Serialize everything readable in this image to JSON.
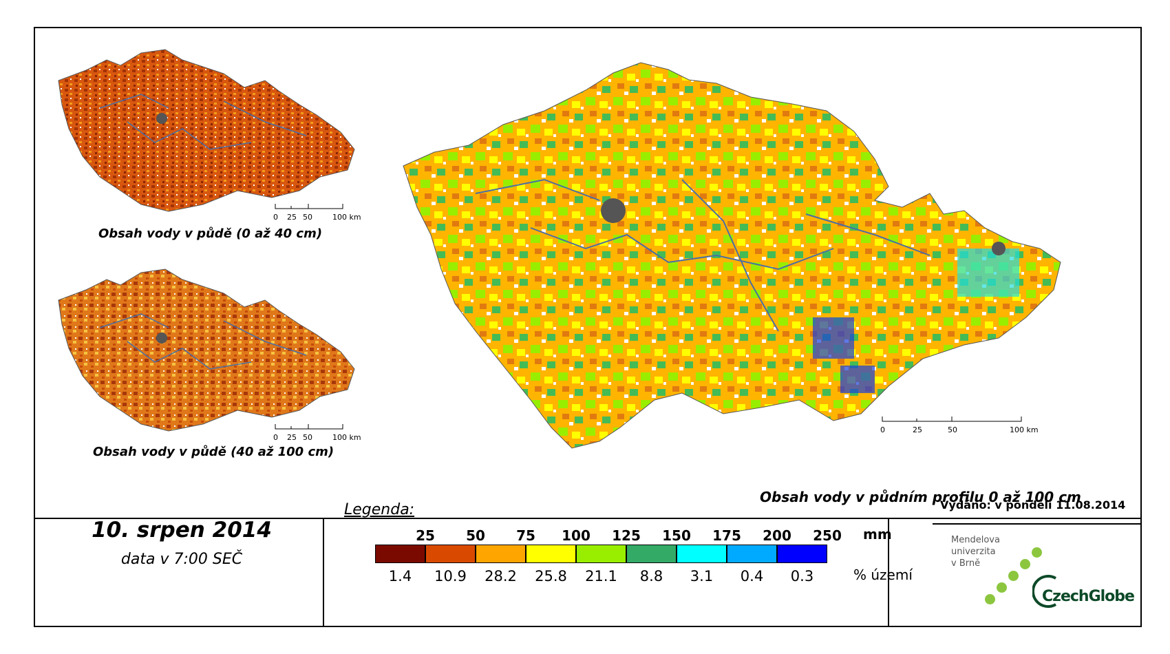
{
  "maps": {
    "small_top": {
      "caption": "Obsah vody v půdě (0 až 40 cm)",
      "scale_labels": [
        "0",
        "25",
        "50",
        "100 km"
      ]
    },
    "small_bottom": {
      "caption": "Obsah vody v půdě (40 až 100 cm)",
      "scale_labels": [
        "0",
        "25",
        "50",
        "100 km"
      ]
    },
    "main": {
      "caption": "Obsah vody v půdním profilu 0 až 100 cm",
      "scale_labels": [
        "0",
        "25",
        "50",
        "100 km"
      ]
    }
  },
  "date": {
    "title": "10. srpen 2014",
    "subtitle": "data v 7:00 SEČ"
  },
  "legend": {
    "title": "Legenda:",
    "unit_mm": "mm",
    "unit_pct": "% území",
    "thresholds_mm": [
      "25",
      "50",
      "75",
      "100",
      "125",
      "150",
      "175",
      "200",
      "250"
    ],
    "classes": [
      {
        "color": "#7a0a00",
        "pct": "1.4"
      },
      {
        "color": "#d94a00",
        "pct": "10.9"
      },
      {
        "color": "#ffa500",
        "pct": "28.2"
      },
      {
        "color": "#ffff00",
        "pct": "25.8"
      },
      {
        "color": "#99ee00",
        "pct": "21.1"
      },
      {
        "color": "#33aa66",
        "pct": "8.8"
      },
      {
        "color": "#00ffff",
        "pct": "3.1"
      },
      {
        "color": "#00aaff",
        "pct": "0.4"
      },
      {
        "color": "#0000ff",
        "pct": "0.3"
      }
    ]
  },
  "issued": "Vydáno: v pondělí 11.08.2014",
  "logos": {
    "mendel_lines": [
      "Mendelova",
      "univerzita",
      "v Brně"
    ],
    "czechglobe": "CzechGlobe"
  }
}
